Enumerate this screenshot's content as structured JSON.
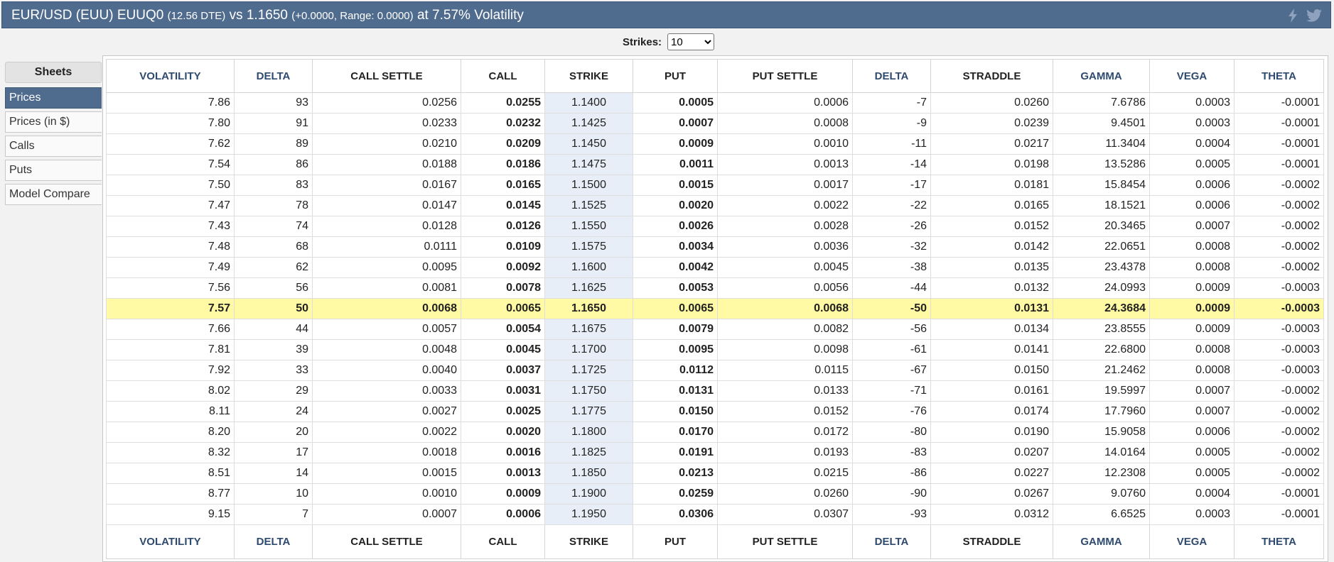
{
  "header": {
    "title_main": "EUR/USD (EUU) EUUQ0",
    "dte": "(12.56 DTE)",
    "vs": "vs 1.1650",
    "change": "(+0.0000,  Range: 0.0000)",
    "vol": "at 7.57% Volatility"
  },
  "strikes": {
    "label": "Strikes:",
    "selected": "10"
  },
  "sidebar": {
    "header": "Sheets",
    "items": [
      {
        "label": "Prices",
        "active": true
      },
      {
        "label": "Prices (in $)",
        "active": false
      },
      {
        "label": "Calls",
        "active": false
      },
      {
        "label": "Puts",
        "active": false
      },
      {
        "label": "Model Compare",
        "active": false
      }
    ]
  },
  "columns": [
    "VOLATILITY",
    "DELTA",
    "CALL SETTLE",
    "CALL",
    "STRIKE",
    "PUT",
    "PUT SETTLE",
    "DELTA",
    "STRADDLE",
    "GAMMA",
    "VEGA",
    "THETA"
  ],
  "rows": [
    [
      "7.86",
      "93",
      "0.0256",
      "0.0255",
      "1.1400",
      "0.0005",
      "0.0006",
      "-7",
      "0.0260",
      "7.6786",
      "0.0003",
      "-0.0001"
    ],
    [
      "7.80",
      "91",
      "0.0233",
      "0.0232",
      "1.1425",
      "0.0007",
      "0.0008",
      "-9",
      "0.0239",
      "9.4501",
      "0.0003",
      "-0.0001"
    ],
    [
      "7.62",
      "89",
      "0.0210",
      "0.0209",
      "1.1450",
      "0.0009",
      "0.0010",
      "-11",
      "0.0217",
      "11.3404",
      "0.0004",
      "-0.0001"
    ],
    [
      "7.54",
      "86",
      "0.0188",
      "0.0186",
      "1.1475",
      "0.0011",
      "0.0013",
      "-14",
      "0.0198",
      "13.5286",
      "0.0005",
      "-0.0001"
    ],
    [
      "7.50",
      "83",
      "0.0167",
      "0.0165",
      "1.1500",
      "0.0015",
      "0.0017",
      "-17",
      "0.0181",
      "15.8454",
      "0.0006",
      "-0.0002"
    ],
    [
      "7.47",
      "78",
      "0.0147",
      "0.0145",
      "1.1525",
      "0.0020",
      "0.0022",
      "-22",
      "0.0165",
      "18.1521",
      "0.0006",
      "-0.0002"
    ],
    [
      "7.43",
      "74",
      "0.0128",
      "0.0126",
      "1.1550",
      "0.0026",
      "0.0028",
      "-26",
      "0.0152",
      "20.3465",
      "0.0007",
      "-0.0002"
    ],
    [
      "7.48",
      "68",
      "0.0111",
      "0.0109",
      "1.1575",
      "0.0034",
      "0.0036",
      "-32",
      "0.0142",
      "22.0651",
      "0.0008",
      "-0.0002"
    ],
    [
      "7.49",
      "62",
      "0.0095",
      "0.0092",
      "1.1600",
      "0.0042",
      "0.0045",
      "-38",
      "0.0135",
      "23.4378",
      "0.0008",
      "-0.0002"
    ],
    [
      "7.56",
      "56",
      "0.0081",
      "0.0078",
      "1.1625",
      "0.0053",
      "0.0056",
      "-44",
      "0.0132",
      "24.0993",
      "0.0009",
      "-0.0003"
    ],
    [
      "7.57",
      "50",
      "0.0068",
      "0.0065",
      "1.1650",
      "0.0065",
      "0.0068",
      "-50",
      "0.0131",
      "24.3684",
      "0.0009",
      "-0.0003"
    ],
    [
      "7.66",
      "44",
      "0.0057",
      "0.0054",
      "1.1675",
      "0.0079",
      "0.0082",
      "-56",
      "0.0134",
      "23.8555",
      "0.0009",
      "-0.0003"
    ],
    [
      "7.81",
      "39",
      "0.0048",
      "0.0045",
      "1.1700",
      "0.0095",
      "0.0098",
      "-61",
      "0.0141",
      "22.6800",
      "0.0008",
      "-0.0003"
    ],
    [
      "7.92",
      "33",
      "0.0040",
      "0.0037",
      "1.1725",
      "0.0112",
      "0.0115",
      "-67",
      "0.0150",
      "21.2462",
      "0.0008",
      "-0.0003"
    ],
    [
      "8.02",
      "29",
      "0.0033",
      "0.0031",
      "1.1750",
      "0.0131",
      "0.0133",
      "-71",
      "0.0161",
      "19.5997",
      "0.0007",
      "-0.0002"
    ],
    [
      "8.11",
      "24",
      "0.0027",
      "0.0025",
      "1.1775",
      "0.0150",
      "0.0152",
      "-76",
      "0.0174",
      "17.7960",
      "0.0007",
      "-0.0002"
    ],
    [
      "8.20",
      "20",
      "0.0022",
      "0.0020",
      "1.1800",
      "0.0170",
      "0.0172",
      "-80",
      "0.0190",
      "15.9058",
      "0.0006",
      "-0.0002"
    ],
    [
      "8.32",
      "17",
      "0.0018",
      "0.0016",
      "1.1825",
      "0.0191",
      "0.0193",
      "-83",
      "0.0207",
      "14.0164",
      "0.0005",
      "-0.0002"
    ],
    [
      "8.51",
      "14",
      "0.0015",
      "0.0013",
      "1.1850",
      "0.0213",
      "0.0215",
      "-86",
      "0.0227",
      "12.2308",
      "0.0005",
      "-0.0002"
    ],
    [
      "8.77",
      "10",
      "0.0010",
      "0.0009",
      "1.1900",
      "0.0259",
      "0.0260",
      "-90",
      "0.0267",
      "9.0760",
      "0.0004",
      "-0.0001"
    ],
    [
      "9.15",
      "7",
      "0.0007",
      "0.0006",
      "1.1950",
      "0.0306",
      "0.0307",
      "-93",
      "0.0312",
      "6.6525",
      "0.0003",
      "-0.0001"
    ]
  ],
  "atm_row_index": 10,
  "colors": {
    "header_bg": "#4f6b8e",
    "atm_highlight": "#fffaa3",
    "strike_bg": "#e8eef7"
  }
}
